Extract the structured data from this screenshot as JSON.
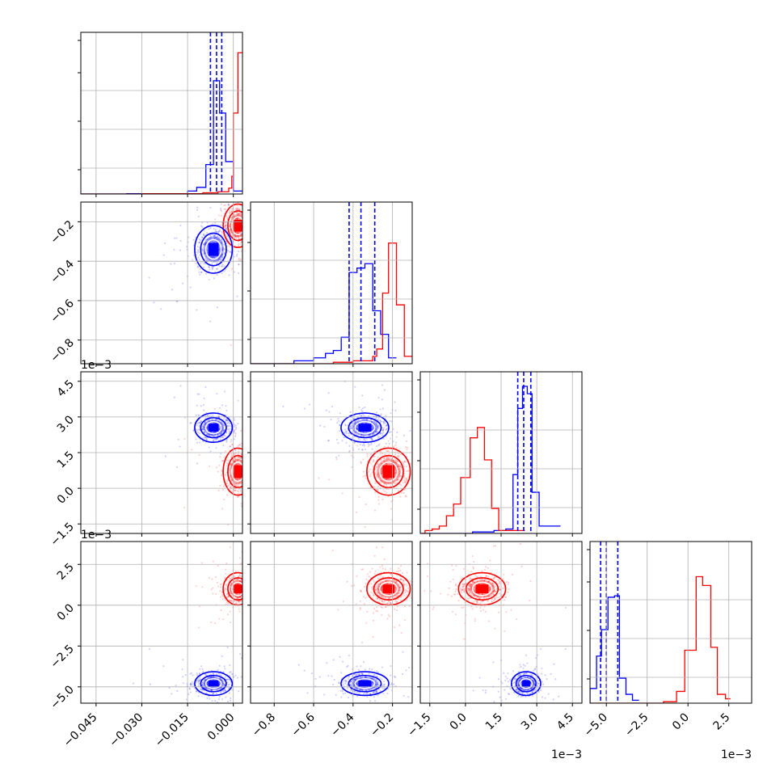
{
  "chart_data": {
    "type": "corner",
    "title": "",
    "n_params": 4,
    "series": [
      {
        "name": "",
        "color": "#0000ff"
      },
      {
        "name": "",
        "color": "#ff0000"
      }
    ],
    "axes": [
      {
        "label": "",
        "range": [
          -0.05,
          0.003
        ],
        "ticks": [
          -0.045,
          -0.03,
          -0.015,
          0.0
        ],
        "tick_labels": [
          "−0.045",
          "−0.030",
          "−0.015",
          "0.000"
        ],
        "offset_text": ""
      },
      {
        "label": "",
        "range": [
          -0.92,
          -0.1
        ],
        "ticks": [
          -0.8,
          -0.6,
          -0.4,
          -0.2
        ],
        "tick_labels": [
          "−0.8",
          "−0.6",
          "−0.4",
          "−0.2"
        ],
        "offset_text": ""
      },
      {
        "label": "",
        "range": [
          -1.9,
          4.9
        ],
        "ticks": [
          -1.5,
          0.0,
          1.5,
          3.0,
          4.5
        ],
        "tick_labels": [
          "−1.5",
          "0.0",
          "1.5",
          "3.0",
          "4.5"
        ],
        "offset_text": "1e−3"
      },
      {
        "label": "",
        "range": [
          -6.0,
          3.9
        ],
        "ticks": [
          -5.0,
          -2.5,
          0.0,
          2.5
        ],
        "tick_labels": [
          "−5.0",
          "−2.5",
          "0.0",
          "2.5"
        ],
        "offset_text": "1e−3"
      }
    ],
    "quantile_lines_series": "blue",
    "quantiles": {
      "blue": [
        [
          -0.0075,
          -0.0055,
          -0.0038
        ],
        [
          -0.42,
          -0.36,
          -0.29
        ],
        [
          2.2,
          2.45,
          2.75
        ],
        [
          -5.35,
          -5.0,
          -4.3
        ]
      ]
    },
    "histograms": {
      "blue": [
        [
          [
            -0.05,
            0
          ],
          [
            -0.035,
            0.002
          ],
          [
            -0.015,
            0.02
          ],
          [
            -0.012,
            0.045
          ],
          [
            -0.009,
            0.2
          ],
          [
            -0.0065,
            0.77
          ],
          [
            -0.0045,
            0.55
          ],
          [
            -0.0025,
            0.22
          ],
          [
            0.0,
            0.02
          ],
          [
            0.003,
            0
          ]
        ],
        [
          [
            -0.92,
            0
          ],
          [
            -0.7,
            0.02
          ],
          [
            -0.6,
            0.04
          ],
          [
            -0.54,
            0.07
          ],
          [
            -0.5,
            0.09
          ],
          [
            -0.46,
            0.18
          ],
          [
            -0.42,
            0.62
          ],
          [
            -0.38,
            0.65
          ],
          [
            -0.34,
            0.68
          ],
          [
            -0.3,
            0.36
          ],
          [
            -0.26,
            0.2
          ],
          [
            -0.22,
            0.04
          ],
          [
            -0.18,
            0.0
          ]
        ],
        [
          [
            -1.9,
            0
          ],
          [
            0.3,
            0.01
          ],
          [
            1.2,
            0.02
          ],
          [
            1.7,
            0.03
          ],
          [
            2.0,
            0.4
          ],
          [
            2.2,
            0.85
          ],
          [
            2.4,
            1.0
          ],
          [
            2.6,
            0.95
          ],
          [
            2.8,
            0.28
          ],
          [
            3.1,
            0.05
          ],
          [
            4.0,
            0.01
          ]
        ],
        [
          [
            -6.0,
            0.1
          ],
          [
            -5.6,
            0.32
          ],
          [
            -5.3,
            0.5
          ],
          [
            -4.9,
            0.72
          ],
          [
            -4.5,
            0.73
          ],
          [
            -4.2,
            0.17
          ],
          [
            -3.8,
            0.06
          ],
          [
            -3.4,
            0.02
          ],
          [
            -3.0,
            0.0
          ]
        ]
      ],
      "red": [
        [
          [
            -0.05,
            0
          ],
          [
            -0.03,
            0.002
          ],
          [
            -0.01,
            0.008
          ],
          [
            -0.005,
            0.015
          ],
          [
            -0.0015,
            0.04
          ],
          [
            -0.0005,
            0.12
          ],
          [
            0.0,
            0.55
          ],
          [
            0.0015,
            0.96
          ],
          [
            0.003,
            0.45
          ]
        ],
        [
          [
            -0.92,
            0
          ],
          [
            -0.5,
            0.01
          ],
          [
            -0.4,
            0.02
          ],
          [
            -0.3,
            0.05
          ],
          [
            -0.28,
            0.1
          ],
          [
            -0.25,
            0.48
          ],
          [
            -0.22,
            0.82
          ],
          [
            -0.18,
            0.4
          ],
          [
            -0.14,
            0.05
          ],
          [
            -0.1,
            0.0
          ]
        ],
        [
          [
            -1.9,
            0
          ],
          [
            -1.7,
            0.02
          ],
          [
            -1.4,
            0.03
          ],
          [
            -1.1,
            0.05
          ],
          [
            -0.8,
            0.12
          ],
          [
            -0.5,
            0.2
          ],
          [
            -0.2,
            0.38
          ],
          [
            0.2,
            0.65
          ],
          [
            0.5,
            0.72
          ],
          [
            0.8,
            0.5
          ],
          [
            1.1,
            0.17
          ],
          [
            1.4,
            0.02
          ],
          [
            2.5,
            0.01
          ]
        ],
        [
          [
            -6.0,
            0
          ],
          [
            -1.5,
            0.01
          ],
          [
            -0.7,
            0.08
          ],
          [
            -0.2,
            0.36
          ],
          [
            0.5,
            0.86
          ],
          [
            0.9,
            0.8
          ],
          [
            1.4,
            0.38
          ],
          [
            1.8,
            0.06
          ],
          [
            2.3,
            0.03
          ],
          [
            2.6,
            0.0
          ]
        ]
      ]
    },
    "modes": {
      "blue": [
        -0.0065,
        -0.34,
        2.55,
        -4.8
      ],
      "red": [
        0.0015,
        -0.22,
        0.7,
        1.0
      ]
    },
    "grid": true,
    "legend": "none"
  }
}
